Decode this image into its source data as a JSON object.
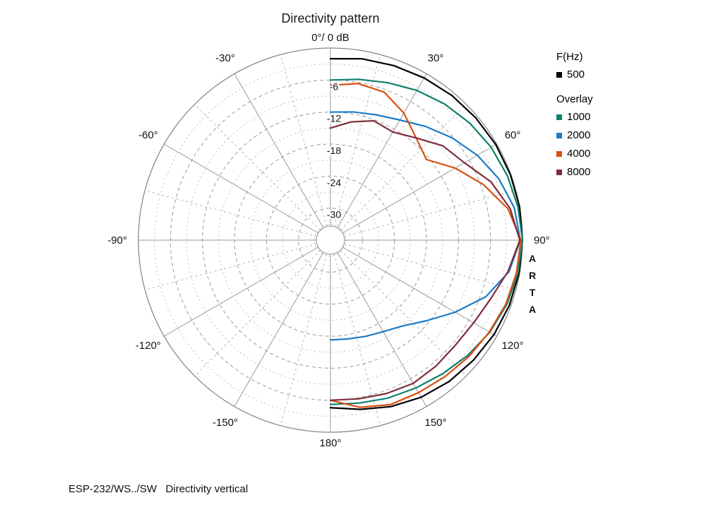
{
  "title": "Directivity pattern",
  "caption": "ESP-232/WS../SW   Directivity vertical",
  "watermark": "ARTA",
  "legend": {
    "freq_header": "F(Hz)",
    "primary": {
      "label": "500",
      "color": "#000000"
    },
    "overlay_header": "Overlay",
    "overlays": [
      {
        "label": "1000",
        "color": "#0f7f6e"
      },
      {
        "label": "2000",
        "color": "#1c7bc8"
      },
      {
        "label": "4000",
        "color": "#d94f10"
      },
      {
        "label": "8000",
        "color": "#7e2d3a"
      }
    ]
  },
  "chart_data": {
    "type": "line",
    "subtype": "polar-directivity",
    "title": "Directivity pattern",
    "units": "dB",
    "angle_unit": "deg",
    "zero_label": "0°/ 0 dB",
    "radial_ticks": [
      -6,
      -12,
      -18,
      -24,
      -30
    ],
    "radial_range": [
      0,
      -36
    ],
    "grid": {
      "circle_step_db": 3,
      "spoke_step_deg": 15,
      "major_spoke_deg": 30,
      "grid_on": true
    },
    "angle_labels": [
      {
        "angle": 30,
        "label": "30°"
      },
      {
        "angle": 60,
        "label": "60°"
      },
      {
        "angle": 90,
        "label": "90°"
      },
      {
        "angle": 120,
        "label": "120°"
      },
      {
        "angle": 150,
        "label": "150°"
      },
      {
        "angle": 180,
        "label": "180°"
      },
      {
        "angle": -30,
        "label": "-30°"
      },
      {
        "angle": -60,
        "label": "-60°"
      },
      {
        "angle": -90,
        "label": "-90°"
      },
      {
        "angle": -120,
        "label": "-120°"
      },
      {
        "angle": -150,
        "label": "-150°"
      }
    ],
    "angles_deg": [
      0,
      10,
      20,
      30,
      40,
      50,
      60,
      70,
      80,
      90,
      100,
      110,
      120,
      130,
      140,
      150,
      160,
      170,
      180
    ],
    "series": [
      {
        "name": "500",
        "color": "#000000",
        "values": [
          -2.0,
          -1.5,
          -1.2,
          -0.9,
          -0.6,
          -0.4,
          -0.2,
          -0.1,
          0,
          0,
          -0.1,
          -0.3,
          -0.6,
          -1.0,
          -1.4,
          -2.0,
          -2.8,
          -3.8,
          -4.6
        ]
      },
      {
        "name": "1000",
        "color": "#0f7f6e",
        "values": [
          -6.0,
          -5.4,
          -4.6,
          -3.6,
          -2.7,
          -1.9,
          -1.2,
          -0.7,
          -0.3,
          0,
          -0.3,
          -0.8,
          -1.5,
          -2.4,
          -3.3,
          -4.0,
          -4.5,
          -5.0,
          -5.2
        ]
      },
      {
        "name": "2000",
        "color": "#1c7bc8",
        "values": [
          -12.0,
          -11.6,
          -11.0,
          -10.0,
          -8.2,
          -6.2,
          -4.2,
          -2.4,
          -1.0,
          -0.4,
          -2.0,
          -5.0,
          -9.0,
          -12.5,
          -15.0,
          -16.2,
          -16.8,
          -17.2,
          -17.3
        ]
      },
      {
        "name": "4000",
        "color": "#d94f10",
        "values": [
          -7.0,
          -6.2,
          -6.5,
          -8.5,
          -11.0,
          -12.5,
          -9.0,
          -5.5,
          -2.2,
          -0.3,
          -0.6,
          -1.0,
          -1.6,
          -2.1,
          -2.6,
          -3.0,
          -3.2,
          -4.2,
          -6.0
        ]
      },
      {
        "name": "8000",
        "color": "#7e2d3a",
        "values": [
          -15.0,
          -13.5,
          -12.2,
          -12.6,
          -11.0,
          -8.5,
          -7.0,
          -4.0,
          -1.8,
          -0.5,
          -2.2,
          -4.0,
          -5.0,
          -5.4,
          -5.2,
          -5.0,
          -5.4,
          -5.8,
          -6.0
        ]
      }
    ]
  }
}
